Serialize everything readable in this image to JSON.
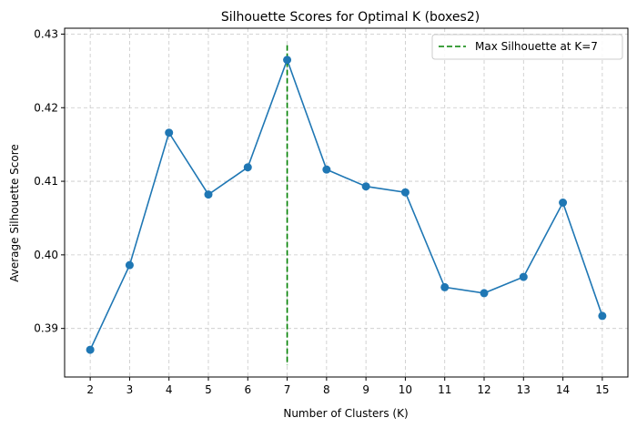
{
  "chart_data": {
    "type": "line",
    "title": "Silhouette Scores for Optimal K (boxes2)",
    "xlabel": "Number of Clusters (K)",
    "ylabel": "Average Silhouette Score",
    "x": [
      2,
      3,
      4,
      5,
      6,
      7,
      8,
      9,
      10,
      11,
      12,
      13,
      14,
      15
    ],
    "series": [
      {
        "values": [
          0.3871,
          0.3986,
          0.4166,
          0.4082,
          0.4119,
          0.4265,
          0.4116,
          0.4093,
          0.4085,
          0.3956,
          0.3948,
          0.397,
          0.4071,
          0.3917
        ],
        "color": "#1f77b4",
        "marker": "circle"
      }
    ],
    "vline": {
      "x": 7,
      "y_range": [
        0.385,
        0.4285
      ],
      "color": "#008000",
      "style": "dashed",
      "label": "Max Silhouette at K=7"
    },
    "xticks": [
      "2",
      "3",
      "4",
      "5",
      "6",
      "7",
      "8",
      "9",
      "10",
      "11",
      "12",
      "13",
      "14",
      "15"
    ],
    "yticks": [
      {
        "value": 0.39,
        "label": "0.39"
      },
      {
        "value": 0.4,
        "label": "0.40"
      },
      {
        "value": 0.41,
        "label": "0.41"
      },
      {
        "value": 0.42,
        "label": "0.42"
      },
      {
        "value": 0.43,
        "label": "0.43"
      }
    ],
    "xlim": [
      1.35,
      15.65
    ],
    "ylim": [
      0.3834,
      0.4308
    ],
    "grid": true,
    "grid_style": "dashed",
    "legend_placement": "top-right"
  }
}
